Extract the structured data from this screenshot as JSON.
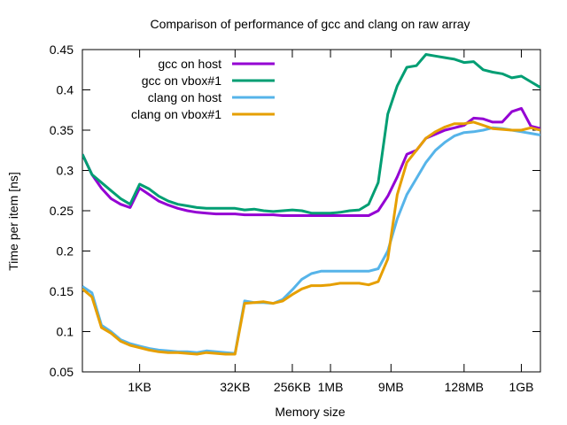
{
  "chart_data": {
    "type": "line",
    "title": "Comparison of performance of gcc and clang on raw array",
    "xlabel": "Memory size",
    "ylabel": "Time per item [ns]",
    "x_scale": "log2",
    "x_unit": "bytes",
    "xlim": [
      128,
      2147483648
    ],
    "ylim": [
      0.05,
      0.45
    ],
    "x_ticks": [
      {
        "label": "1KB",
        "value": 1024
      },
      {
        "label": "32KB",
        "value": 32768
      },
      {
        "label": "256KB",
        "value": 262144
      },
      {
        "label": "1MB",
        "value": 1048576
      },
      {
        "label": "9MB",
        "value": 9437184
      },
      {
        "label": "128MB",
        "value": 134217728
      },
      {
        "label": "1GB",
        "value": 1073741824
      }
    ],
    "y_ticks": [
      "0.05",
      "0.1",
      "0.15",
      "0.2",
      "0.25",
      "0.3",
      "0.35",
      "0.4",
      "0.45"
    ],
    "grid": false,
    "legend_position": "top-left",
    "series": [
      {
        "name": "gcc on host",
        "color": "#9400d3",
        "x": [
          128,
          181,
          256,
          362,
          512,
          724,
          1024,
          1448,
          2048,
          2896,
          4096,
          5793,
          8192,
          11585,
          16384,
          23170,
          32768,
          46341,
          65536,
          92682,
          131072,
          185364,
          262144,
          370728,
          524288,
          741455,
          1048576,
          1482910,
          2097152,
          2965821,
          4194304,
          5931642,
          8388608,
          11863283,
          16777216,
          23726566,
          33554432,
          47453133,
          67108864,
          94906266,
          134217728,
          189812531,
          268435456,
          379625062,
          536870912,
          759250125,
          1073741824,
          1518500250,
          2147483648
        ],
        "y": [
          0.32,
          0.295,
          0.278,
          0.265,
          0.258,
          0.254,
          0.278,
          0.27,
          0.262,
          0.257,
          0.253,
          0.25,
          0.248,
          0.247,
          0.246,
          0.246,
          0.246,
          0.245,
          0.245,
          0.245,
          0.245,
          0.244,
          0.244,
          0.244,
          0.244,
          0.244,
          0.244,
          0.244,
          0.244,
          0.244,
          0.244,
          0.25,
          0.268,
          0.292,
          0.32,
          0.325,
          0.34,
          0.345,
          0.35,
          0.353,
          0.356,
          0.365,
          0.364,
          0.36,
          0.36,
          0.373,
          0.377,
          0.355,
          0.352
        ]
      },
      {
        "name": "gcc on vbox#1",
        "color": "#009e73",
        "x": [
          128,
          181,
          256,
          362,
          512,
          724,
          1024,
          1448,
          2048,
          2896,
          4096,
          5793,
          8192,
          11585,
          16384,
          23170,
          32768,
          46341,
          65536,
          92682,
          131072,
          185364,
          262144,
          370728,
          524288,
          741455,
          1048576,
          1482910,
          2097152,
          2965821,
          4194304,
          5931642,
          8388608,
          11863283,
          16777216,
          23726566,
          33554432,
          47453133,
          67108864,
          94906266,
          134217728,
          189812531,
          268435456,
          379625062,
          536870912,
          759250125,
          1073741824,
          1518500250,
          2147483648
        ],
        "y": [
          0.32,
          0.295,
          0.285,
          0.275,
          0.265,
          0.258,
          0.283,
          0.277,
          0.268,
          0.262,
          0.258,
          0.256,
          0.254,
          0.253,
          0.253,
          0.253,
          0.253,
          0.251,
          0.252,
          0.25,
          0.249,
          0.25,
          0.251,
          0.25,
          0.247,
          0.247,
          0.247,
          0.248,
          0.25,
          0.251,
          0.258,
          0.285,
          0.37,
          0.405,
          0.428,
          0.43,
          0.444,
          0.442,
          0.44,
          0.438,
          0.434,
          0.435,
          0.425,
          0.422,
          0.42,
          0.415,
          0.417,
          0.41,
          0.403
        ]
      },
      {
        "name": "clang on host",
        "color": "#56b4e9",
        "x": [
          128,
          181,
          256,
          362,
          512,
          724,
          1024,
          1448,
          2048,
          2896,
          4096,
          5793,
          8192,
          11585,
          16384,
          23170,
          32768,
          46341,
          65536,
          92682,
          131072,
          185364,
          262144,
          370728,
          524288,
          741455,
          1048576,
          1482910,
          2097152,
          2965821,
          4194304,
          5931642,
          8388608,
          11863283,
          16777216,
          23726566,
          33554432,
          47453133,
          67108864,
          94906266,
          134217728,
          189812531,
          268435456,
          379625062,
          536870912,
          759250125,
          1073741824,
          1518500250,
          2147483648
        ],
        "y": [
          0.156,
          0.148,
          0.108,
          0.1,
          0.09,
          0.085,
          0.082,
          0.079,
          0.077,
          0.076,
          0.075,
          0.075,
          0.074,
          0.076,
          0.075,
          0.074,
          0.073,
          0.138,
          0.136,
          0.136,
          0.135,
          0.14,
          0.152,
          0.165,
          0.172,
          0.175,
          0.175,
          0.175,
          0.175,
          0.175,
          0.175,
          0.178,
          0.2,
          0.24,
          0.27,
          0.29,
          0.31,
          0.325,
          0.335,
          0.343,
          0.347,
          0.348,
          0.35,
          0.353,
          0.352,
          0.35,
          0.348,
          0.346,
          0.344
        ]
      },
      {
        "name": "clang on vbox#1",
        "color": "#e69f00",
        "x": [
          128,
          181,
          256,
          362,
          512,
          724,
          1024,
          1448,
          2048,
          2896,
          4096,
          5793,
          8192,
          11585,
          16384,
          23170,
          32768,
          46341,
          65536,
          92682,
          131072,
          185364,
          262144,
          370728,
          524288,
          741455,
          1048576,
          1482910,
          2097152,
          2965821,
          4194304,
          5931642,
          8388608,
          11863283,
          16777216,
          23726566,
          33554432,
          47453133,
          67108864,
          94906266,
          134217728,
          189812531,
          268435456,
          379625062,
          536870912,
          759250125,
          1073741824,
          1518500250,
          2147483648
        ],
        "y": [
          0.153,
          0.143,
          0.105,
          0.098,
          0.088,
          0.083,
          0.08,
          0.077,
          0.075,
          0.074,
          0.074,
          0.073,
          0.072,
          0.074,
          0.073,
          0.072,
          0.072,
          0.135,
          0.136,
          0.137,
          0.135,
          0.138,
          0.146,
          0.153,
          0.157,
          0.157,
          0.158,
          0.16,
          0.16,
          0.16,
          0.158,
          0.162,
          0.19,
          0.27,
          0.31,
          0.325,
          0.34,
          0.348,
          0.354,
          0.358,
          0.358,
          0.36,
          0.356,
          0.352,
          0.351,
          0.35,
          0.35,
          0.353,
          0.35
        ]
      }
    ]
  }
}
